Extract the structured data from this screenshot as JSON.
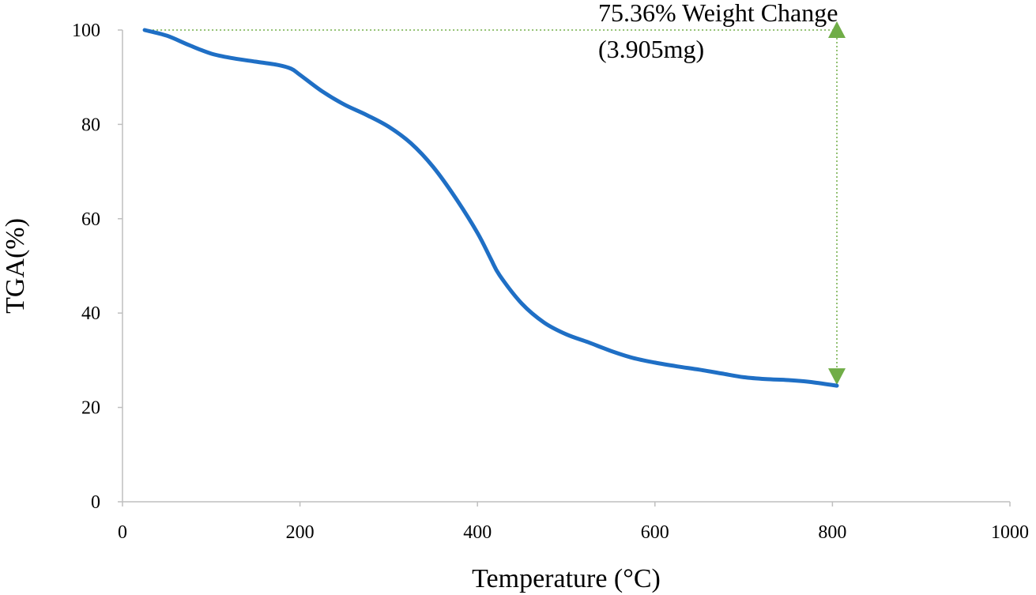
{
  "chart_data": {
    "type": "line",
    "title": "",
    "xlabel": "Temperature (°C)",
    "ylabel": "TGA(%)",
    "xlim": [
      0,
      1000
    ],
    "ylim": [
      0,
      100
    ],
    "x_ticks": [
      "0",
      "200",
      "400",
      "600",
      "800",
      "1000"
    ],
    "y_ticks": [
      "0",
      "20",
      "40",
      "60",
      "80",
      "100"
    ],
    "grid": false,
    "legend": "none",
    "series": [
      {
        "color": "#1f6fc5",
        "x": [
          25,
          50,
          75,
          100,
          125,
          150,
          175,
          190,
          200,
          225,
          250,
          275,
          300,
          325,
          350,
          375,
          400,
          415,
          425,
          450,
          475,
          500,
          525,
          550,
          575,
          600,
          625,
          650,
          675,
          700,
          725,
          750,
          775,
          805
        ],
        "y": [
          100,
          98.8,
          96.8,
          95.0,
          94.0,
          93.3,
          92.6,
          91.8,
          90.5,
          87.0,
          84.2,
          82.0,
          79.5,
          76.0,
          71.0,
          64.5,
          57.0,
          51.5,
          48.0,
          42.0,
          38.0,
          35.5,
          33.8,
          32.0,
          30.5,
          29.5,
          28.7,
          28.0,
          27.2,
          26.4,
          26.0,
          25.8,
          25.4,
          24.6
        ]
      }
    ],
    "annotation": {
      "line1": "75.36% Weight Change",
      "line2": "(3.905mg)",
      "color": "#70ad47",
      "x": 805,
      "y_top": 100,
      "y_bottom": 24.6,
      "x_start": 25
    }
  }
}
